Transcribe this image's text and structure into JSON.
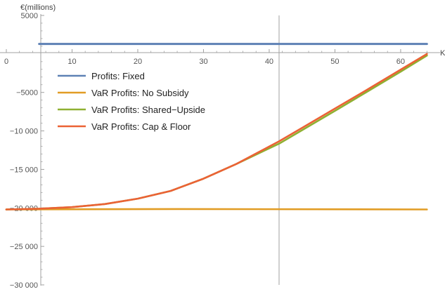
{
  "chart_data": {
    "type": "line",
    "ylabel": "€(millions)",
    "xlabel": "K",
    "xlim": [
      0,
      66
    ],
    "ylim": [
      -30000,
      5000
    ],
    "x_ticks": [
      0,
      10,
      20,
      30,
      40,
      50,
      60
    ],
    "x_tick_labels": [
      "0",
      "10",
      "20",
      "30",
      "40",
      "50",
      "60"
    ],
    "x_minor_step": 2,
    "y_ticks": [
      5000,
      -5000,
      -10000,
      -15000,
      -20000,
      -25000,
      -30000
    ],
    "y_tick_labels": [
      "5000",
      "−5000",
      "−10 000",
      "−15 000",
      "−20 000",
      "−25 000",
      "−30 000"
    ],
    "y_minor_step": 1000,
    "vertical_marker_x": 41.5,
    "legend_position": "upper-left",
    "series": [
      {
        "name": "Profits: Fixed",
        "color": "#5e81b5",
        "x": [
          5,
          64
        ],
        "y": [
          1300,
          1300
        ]
      },
      {
        "name": "VaR Profits: No Subsidy",
        "color": "#e19c24",
        "x": [
          0,
          26,
          64
        ],
        "y": [
          -20200,
          -20150,
          -20200
        ]
      },
      {
        "name": "VaR Profits: Shared−Upside",
        "color": "#8fb032",
        "x": [
          0,
          5,
          10,
          15,
          20,
          25,
          30,
          35,
          41.5,
          45,
          50,
          55,
          60,
          64
        ],
        "y": [
          -20200,
          -20100,
          -19900,
          -19500,
          -18800,
          -17800,
          -16200,
          -14300,
          -11650,
          -9900,
          -7400,
          -4850,
          -2300,
          -200
        ]
      },
      {
        "name": "VaR Profits: Cap & Floor",
        "color": "#eb6235",
        "x": [
          0,
          5,
          10,
          15,
          20,
          25,
          30,
          35,
          41.5,
          45,
          50,
          55,
          60,
          64
        ],
        "y": [
          -20200,
          -20100,
          -19900,
          -19500,
          -18800,
          -17800,
          -16200,
          -14300,
          -11350,
          -9600,
          -7100,
          -4600,
          -2050,
          0
        ]
      }
    ]
  }
}
